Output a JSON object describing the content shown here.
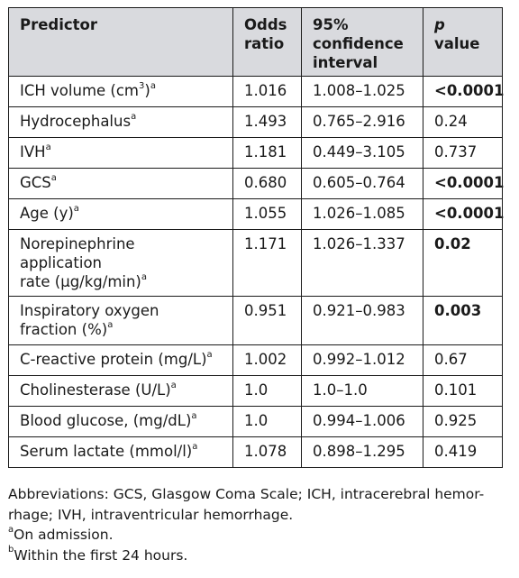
{
  "header": {
    "predictor": "Predictor",
    "odds": [
      "Odds",
      "ratio"
    ],
    "ci": [
      "95%",
      "confidence",
      "interval"
    ],
    "p_italic": "p",
    "p_rest": " value"
  },
  "footnote_sup": "a",
  "rows": [
    {
      "pred": "ICH volume (cm",
      "pred_sup_inline": "3",
      "pred_after": ")",
      "or": "1.016",
      "ci": "1.008–1.025",
      "p": "<0.0001",
      "p_bold": true
    },
    {
      "pred": "Hydrocephalus",
      "or": "1.493",
      "ci": "0.765–2.916",
      "p": "0.24",
      "p_bold": false
    },
    {
      "pred": "IVH",
      "or": "1.181",
      "ci": "0.449–3.105",
      "p": "0.737",
      "p_bold": false
    },
    {
      "pred": "GCS",
      "or": "0.680",
      "ci": "0.605–0.764",
      "p": "<0.0001",
      "p_bold": true
    },
    {
      "pred": "Age (y)",
      "or": "1.055",
      "ci": "1.026–1.085",
      "p": "<0.0001",
      "p_bold": true
    },
    {
      "pred_lines": [
        "Norepinephrine",
        "application",
        "rate (µg/kg/min)"
      ],
      "or": "1.171",
      "ci": "1.026–1.337",
      "p": "0.02",
      "p_bold": true
    },
    {
      "pred_lines": [
        "Inspiratory oxygen",
        "fraction (%)"
      ],
      "or": "0.951",
      "ci": "0.921–0.983",
      "p": "0.003",
      "p_bold": true
    },
    {
      "pred": "C-reactive protein (mg/L)",
      "or": "1.002",
      "ci": "0.992–1.012",
      "p": "0.67",
      "p_bold": false
    },
    {
      "pred": "Cholinesterase (U/L)",
      "or": "1.0",
      "ci": "1.0–1.0",
      "p": "0.101",
      "p_bold": false
    },
    {
      "pred": "Blood glucose, (mg/dL)",
      "or": "1.0",
      "ci": "0.994–1.006",
      "p": "0.925",
      "p_bold": false
    },
    {
      "pred": "Serum lactate (mmol/l)",
      "or": "1.078",
      "ci": "0.898–1.295",
      "p": "0.419",
      "p_bold": false
    }
  ],
  "notes": {
    "abbrev": [
      "Abbreviations: GCS, Glasgow Coma Scale; ICH, intracerebral hemor-",
      "rhage; IVH, intraventricular hemorrhage."
    ],
    "a_mark": "a",
    "a_text": "On admission.",
    "b_mark": "b",
    "b_text": "Within the first 24 hours."
  }
}
